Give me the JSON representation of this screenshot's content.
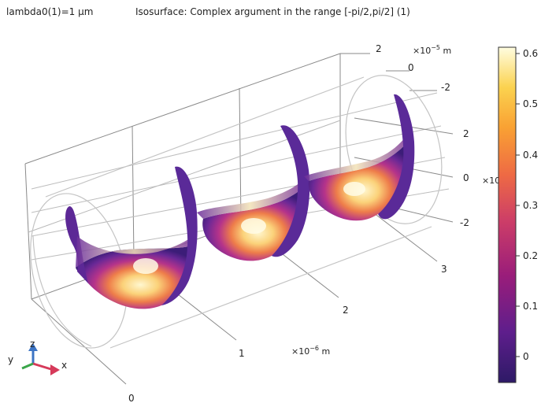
{
  "header": {
    "parameter_label": "lambda0(1)=1 µm",
    "plot_title": "Isosurface: Complex argument in the range [-pi/2,pi/2] (1)"
  },
  "axes": {
    "x": {
      "ticks": [
        "0",
        "1",
        "2",
        "3"
      ],
      "unit_base": "×10",
      "unit_exp": "−6",
      "unit_suffix": " m"
    },
    "y": {
      "ticks": [
        "2",
        "0",
        "-2"
      ],
      "unit_base": "×10",
      "unit_exp": "−5",
      "unit_suffix": " m"
    },
    "z": {
      "ticks": [
        "2",
        "0",
        "-2"
      ],
      "unit_label": "×10 m"
    }
  },
  "colorbar": {
    "ticks": [
      "0.6",
      "0.5",
      "0.4",
      "0.3",
      "0.2",
      "0.1",
      "0"
    ],
    "colors": [
      "#FFFDE0",
      "#FBD24F",
      "#F9A133",
      "#EE6A44",
      "#CC3D68",
      "#9A1D7A",
      "#5E1E8C",
      "#2D1A66"
    ]
  },
  "triad": {
    "x": "x",
    "y": "y",
    "z": "z",
    "x_color": "#d63a5a",
    "y_color": "#3aa64a",
    "z_color": "#3c74c4"
  },
  "surface_colors": {
    "deep": "#3a1f7a",
    "mid": "#7a2b96",
    "warm": "#d9477a",
    "hot": "#f6a23c",
    "bright": "#fff5c8"
  }
}
